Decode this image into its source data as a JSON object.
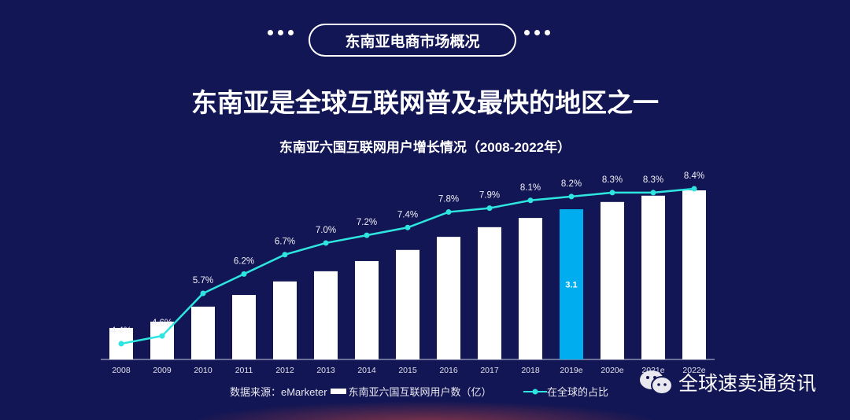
{
  "header": {
    "pill_label": "东南亚电商市场概况",
    "title": "东南亚是全球互联网普及最快的地区之一"
  },
  "chart_data": {
    "type": "bar",
    "title": "东南亚六国互联网用户增长情况（2008-2022年）",
    "categories": [
      "2008",
      "2009",
      "2010",
      "2011",
      "2012",
      "2013",
      "2014",
      "2015",
      "2016",
      "2017",
      "2018",
      "2019e",
      "2020e",
      "2021e",
      "2022e"
    ],
    "series": [
      {
        "name": "东南亚六国互联网用户数（亿）",
        "type": "bar",
        "color": "#ffffff",
        "highlight_color": "#00aeef",
        "highlight_category": "2019e",
        "highlight_label": "3.1",
        "values": [
          0.65,
          0.78,
          1.09,
          1.33,
          1.61,
          1.82,
          2.03,
          2.26,
          2.53,
          2.73,
          2.92,
          3.1,
          3.25,
          3.38,
          3.49
        ]
      },
      {
        "name": "在全球的占比",
        "type": "line",
        "color": "#2ee6e0",
        "values": [
          4.4,
          4.6,
          5.7,
          6.2,
          6.7,
          7.0,
          7.2,
          7.4,
          7.8,
          7.9,
          8.1,
          8.2,
          8.3,
          8.3,
          8.4
        ],
        "labels": [
          "4.4%",
          "4.6%",
          "5.7%",
          "6.2%",
          "6.7%",
          "7.0%",
          "7.2%",
          "7.4%",
          "7.8%",
          "7.9%",
          "8.1%",
          "8.2%",
          "8.3%",
          "8.3%",
          "8.4%"
        ]
      }
    ],
    "grid": false,
    "legend_position": "bottom"
  },
  "legend": {
    "source": "数据来源：eMarketer"
  },
  "watermark": {
    "text": "全球速卖通资讯",
    "icon": "wechat-icon"
  }
}
